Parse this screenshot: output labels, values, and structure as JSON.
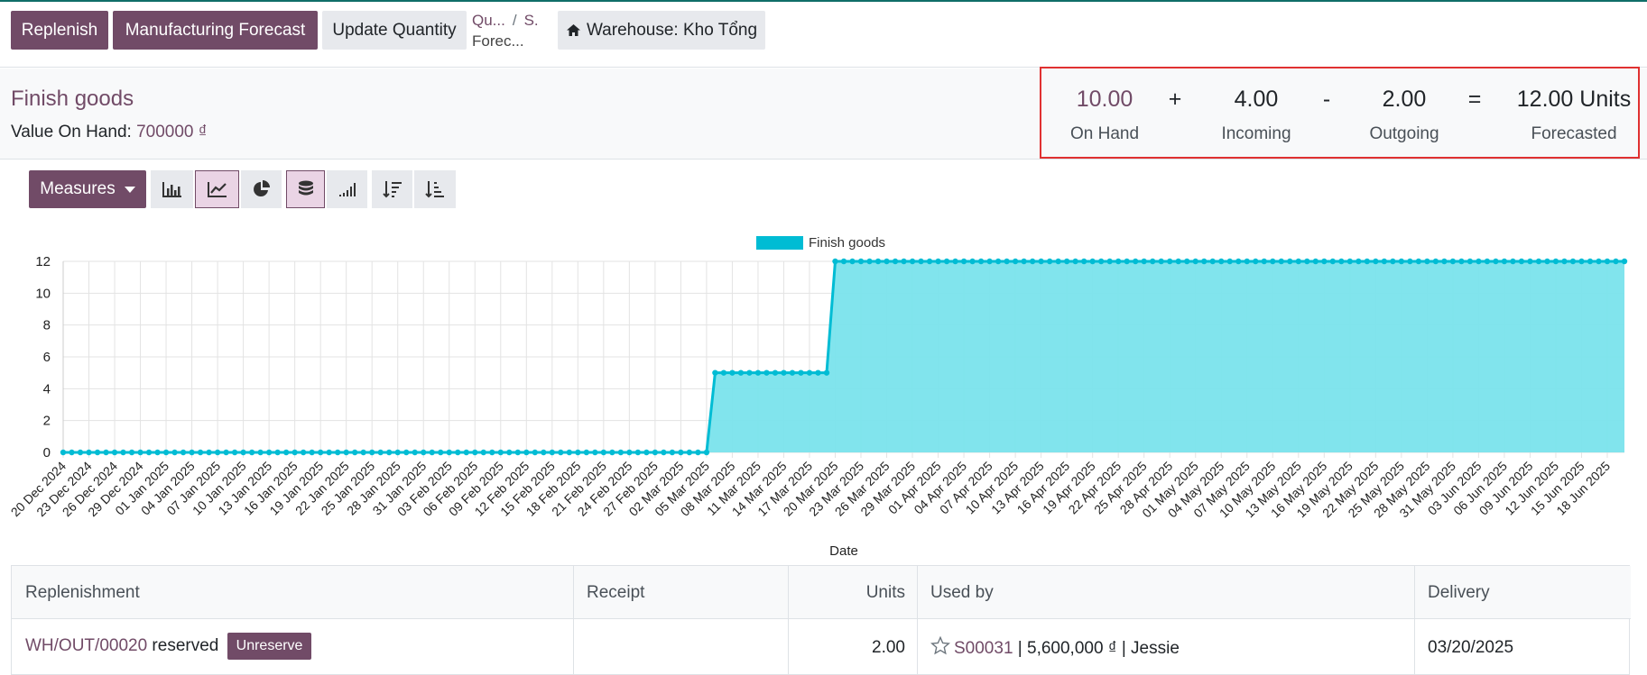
{
  "control_panel": {
    "replenish_label": "Replenish",
    "manufacturing_forecast_label": "Manufacturing Forecast",
    "update_quantity_label": "Update Quantity",
    "breadcrumb": [
      "Qu...",
      "S."
    ],
    "breadcrumb_current": "Forec...",
    "warehouse_label": "Warehouse: Kho Tổng"
  },
  "header": {
    "product_title": "Finish goods",
    "value_label": "Value On Hand: ",
    "value_amount": "700000 ₫"
  },
  "stats": {
    "on_hand_value": "10.00",
    "on_hand_label": "On Hand",
    "plus_op": "+",
    "incoming_value": "4.00",
    "incoming_label": "Incoming",
    "minus_op": "-",
    "outgoing_value": "2.00",
    "outgoing_label": "Outgoing",
    "equals_op": "=",
    "forecasted_value": "12.00 Units",
    "forecasted_label": "Forecasted"
  },
  "toolbar": {
    "measures_label": "Measures",
    "buttons": [
      {
        "icon": "bar-chart-icon",
        "active": false
      },
      {
        "icon": "line-chart-icon",
        "active": true
      },
      {
        "icon": "pie-chart-icon",
        "active": false
      },
      {
        "icon": "stacked-icon",
        "active": true
      },
      {
        "icon": "cumulative-icon",
        "active": false
      },
      {
        "icon": "sort-descending-icon",
        "active": false
      },
      {
        "icon": "sort-ascending-icon",
        "active": false
      }
    ]
  },
  "chart_data": {
    "type": "area",
    "xlabel": "Date",
    "ylabel": "",
    "ylim": [
      0,
      12
    ],
    "yticks": [
      0,
      2,
      4,
      6,
      8,
      10,
      12
    ],
    "grid": true,
    "legend_position": "top",
    "color": "#00bcd4",
    "fill": "#7ae3ec",
    "x_start": "20 Dec 2024",
    "x_end": "20 Jun 2025",
    "step_interval_days": 1,
    "tick_interval_days": 3,
    "x_tick_labels": [
      "20 Dec 2024",
      "23 Dec 2024",
      "26 Dec 2024",
      "29 Dec 2024",
      "01 Jan 2025",
      "04 Jan 2025",
      "07 Jan 2025",
      "10 Jan 2025",
      "13 Jan 2025",
      "16 Jan 2025",
      "19 Jan 2025",
      "22 Jan 2025",
      "25 Jan 2025",
      "28 Jan 2025",
      "31 Jan 2025",
      "03 Feb 2025",
      "06 Feb 2025",
      "09 Feb 2025",
      "12 Feb 2025",
      "15 Feb 2025",
      "18 Feb 2025",
      "21 Feb 2025",
      "24 Feb 2025",
      "27 Feb 2025",
      "02 Mar 2025",
      "05 Mar 2025",
      "08 Mar 2025",
      "11 Mar 2025",
      "14 Mar 2025",
      "17 Mar 2025",
      "20 Mar 2025",
      "23 Mar 2025",
      "26 Mar 2025",
      "29 Mar 2025",
      "01 Apr 2025",
      "04 Apr 2025",
      "07 Apr 2025",
      "10 Apr 2025",
      "13 Apr 2025",
      "16 Apr 2025",
      "19 Apr 2025",
      "22 Apr 2025",
      "25 Apr 2025",
      "28 Apr 2025",
      "01 May 2025",
      "04 May 2025",
      "07 May 2025",
      "10 May 2025",
      "13 May 2025",
      "16 May 2025",
      "19 May 2025",
      "22 May 2025",
      "25 May 2025",
      "28 May 2025",
      "31 May 2025",
      "03 Jun 2025",
      "06 Jun 2025",
      "09 Jun 2025",
      "12 Jun 2025",
      "15 Jun 2025",
      "18 Jun 2025"
    ],
    "series": [
      {
        "name": "Finish goods",
        "steps": [
          {
            "from": "20 Dec 2024",
            "to": "05 Mar 2025",
            "value": 0
          },
          {
            "from": "06 Mar 2025",
            "to": "19 Mar 2025",
            "value": 5
          },
          {
            "from": "20 Mar 2025",
            "to": "20 Jun 2025",
            "value": 12
          }
        ]
      }
    ]
  },
  "table": {
    "headers": [
      "Replenishment",
      "Receipt",
      "Units",
      "Used by",
      "Delivery"
    ],
    "rows": [
      {
        "replenishment_link": "WH/OUT/00020",
        "replenishment_status": " reserved",
        "unreserve_label": "Unreserve",
        "receipt": "",
        "units": "2.00",
        "used_by_ref": "S00031",
        "used_by_rest": " | 5,600,000 ₫ | Jessie",
        "delivery": "03/20/2025"
      }
    ]
  }
}
